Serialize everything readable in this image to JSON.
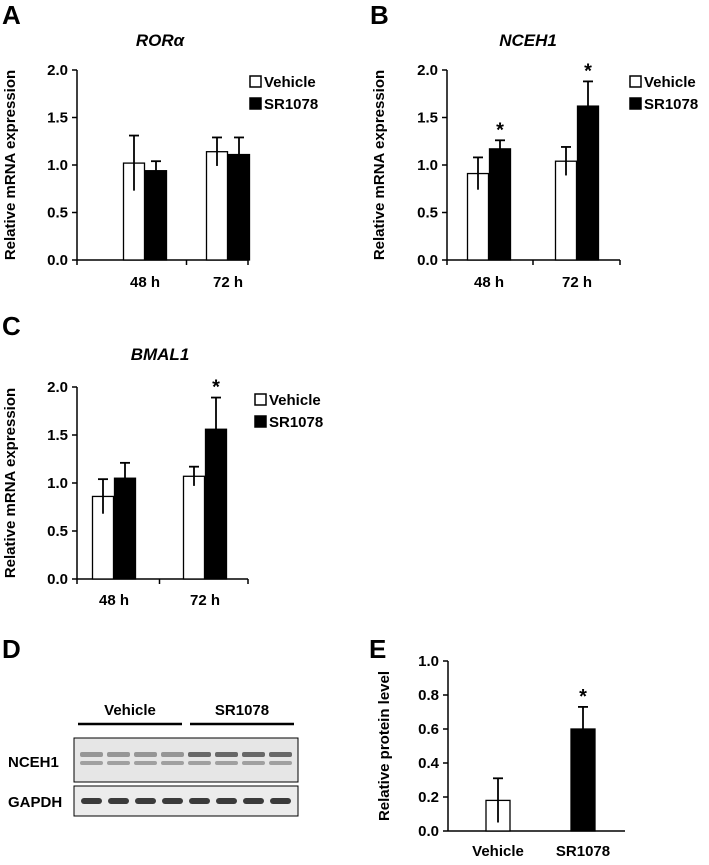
{
  "panels": {
    "a": "A",
    "b": "B",
    "c": "C",
    "d": "D",
    "e": "E"
  },
  "colors": {
    "vehicle_fill": "#ffffff",
    "sr1078_fill": "#000000",
    "stroke": "#000000"
  },
  "chart_data": [
    {
      "type": "bar",
      "title": "RORα",
      "ylabel": "Relative mRNA expression",
      "categories": [
        "48 h",
        "72 h"
      ],
      "ylim": [
        0,
        2.0
      ],
      "yticks": [
        "0.0",
        "0.5",
        "1.0",
        "1.5",
        "2.0"
      ],
      "legend": "top-right",
      "series": [
        {
          "name": "Vehicle",
          "values": [
            1.02,
            1.14
          ],
          "errors": [
            0.29,
            0.15
          ]
        },
        {
          "name": "SR1078",
          "values": [
            0.94,
            1.11
          ],
          "errors": [
            0.1,
            0.18
          ]
        }
      ],
      "significance": []
    },
    {
      "type": "bar",
      "title": "NCEH1",
      "ylabel": "Relative mRNA expression",
      "categories": [
        "48 h",
        "72 h"
      ],
      "ylim": [
        0,
        2.0
      ],
      "yticks": [
        "0.0",
        "0.5",
        "1.0",
        "1.5",
        "2.0"
      ],
      "legend": "top-right",
      "series": [
        {
          "name": "Vehicle",
          "values": [
            0.91,
            1.04
          ],
          "errors": [
            0.17,
            0.15
          ]
        },
        {
          "name": "SR1078",
          "values": [
            1.17,
            1.62
          ],
          "errors": [
            0.09,
            0.26
          ]
        }
      ],
      "significance": [
        {
          "series": 1,
          "category": 0,
          "label": "*"
        },
        {
          "series": 1,
          "category": 1,
          "label": "*"
        }
      ]
    },
    {
      "type": "bar",
      "title": "BMAL1",
      "ylabel": "Relative mRNA expression",
      "categories": [
        "48 h",
        "72 h"
      ],
      "ylim": [
        0,
        2.0
      ],
      "yticks": [
        "0.0",
        "0.5",
        "1.0",
        "1.5",
        "2.0"
      ],
      "legend": "top-right",
      "series": [
        {
          "name": "Vehicle",
          "values": [
            0.86,
            1.07
          ],
          "errors": [
            0.18,
            0.1
          ]
        },
        {
          "name": "SR1078",
          "values": [
            1.05,
            1.56
          ],
          "errors": [
            0.16,
            0.33
          ]
        }
      ],
      "significance": [
        {
          "series": 1,
          "category": 1,
          "label": "*"
        }
      ]
    },
    {
      "type": "bar",
      "title": "",
      "ylabel": "Relative protein level",
      "categories": [
        "Vehicle",
        "SR1078"
      ],
      "ylim": [
        0,
        1.0
      ],
      "yticks": [
        "0.0",
        "0.2",
        "0.4",
        "0.6",
        "0.8",
        "1.0"
      ],
      "legend": "none",
      "series": [
        {
          "name": "Vehicle",
          "values": [
            0.18,
            null
          ],
          "errors": [
            0.13,
            null
          ]
        },
        {
          "name": "SR1078",
          "values": [
            null,
            0.6
          ],
          "errors": [
            null,
            0.13
          ]
        }
      ],
      "significance": [
        {
          "series": 1,
          "category": 1,
          "label": "*"
        }
      ]
    }
  ],
  "blot": {
    "groups": [
      "Vehicle",
      "SR1078"
    ],
    "rows": [
      "NCEH1",
      "GAPDH"
    ],
    "lanes_per_group": 4
  }
}
